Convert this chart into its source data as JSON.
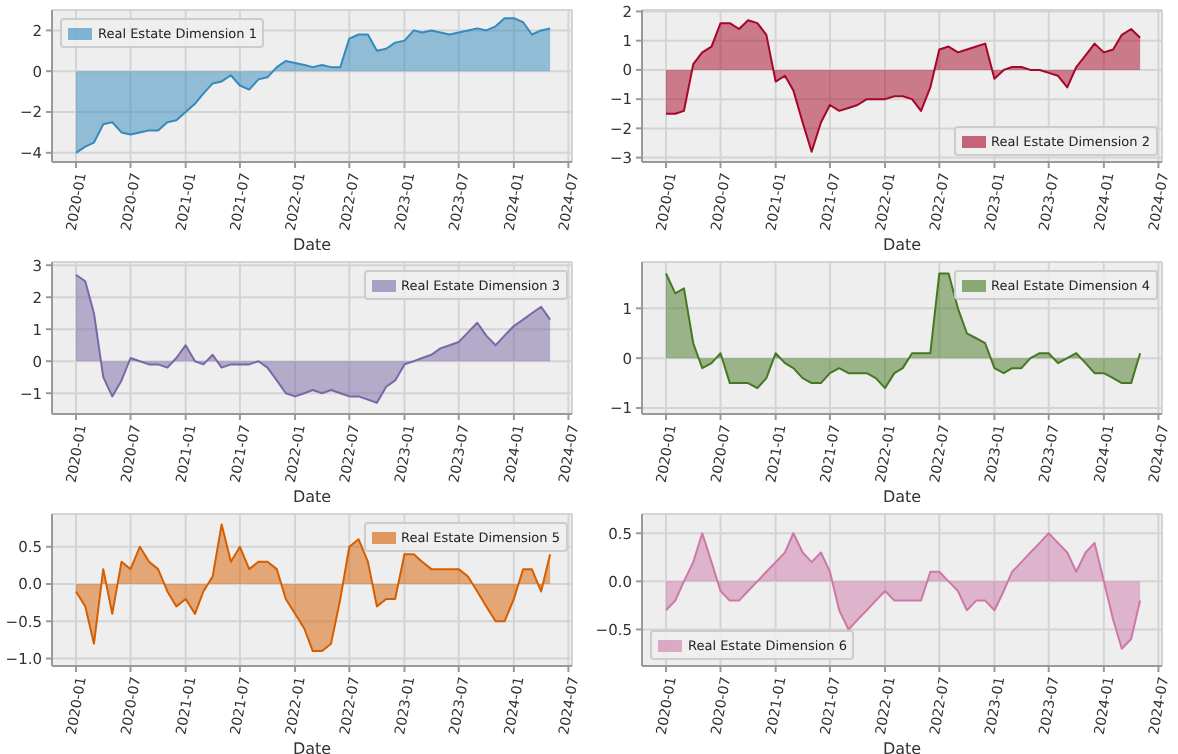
{
  "chart_data": [
    {
      "type": "area",
      "xlabel": "Date",
      "legend": "top left",
      "grid": true,
      "xlim": [
        "2019-10-13",
        "2024-07-13"
      ],
      "xticks": [
        "2020-01",
        "2020-07",
        "2021-01",
        "2021-07",
        "2022-01",
        "2022-07",
        "2023-01",
        "2023-07",
        "2024-01",
        "2024-07"
      ],
      "ylim": [
        -4.45,
        3.0
      ],
      "yticks": [
        {
          "value": -4,
          "label": "−4"
        },
        {
          "value": -2,
          "label": "−2"
        },
        0,
        2
      ],
      "x": [
        "2020-01",
        "2020-02",
        "2020-03",
        "2020-04",
        "2020-05",
        "2020-06",
        "2020-07",
        "2020-08",
        "2020-09",
        "2020-10",
        "2020-11",
        "2020-12",
        "2021-01",
        "2021-02",
        "2021-03",
        "2021-04",
        "2021-05",
        "2021-06",
        "2021-07",
        "2021-08",
        "2021-09",
        "2021-10",
        "2021-11",
        "2021-12",
        "2022-01",
        "2022-02",
        "2022-03",
        "2022-04",
        "2022-05",
        "2022-06",
        "2022-07",
        "2022-08",
        "2022-09",
        "2022-10",
        "2022-11",
        "2022-12",
        "2023-01",
        "2023-02",
        "2023-03",
        "2023-04",
        "2023-05",
        "2023-06",
        "2023-07",
        "2023-08",
        "2023-09",
        "2023-10",
        "2023-11",
        "2023-12",
        "2024-01",
        "2024-02",
        "2024-03",
        "2024-04",
        "2024-05"
      ],
      "series": [
        {
          "name": "Real Estate Dimension 1",
          "color": "#348abd",
          "values": [
            -4.0,
            -3.7,
            -3.5,
            -2.6,
            -2.5,
            -3.0,
            -3.1,
            -3.0,
            -2.9,
            -2.9,
            -2.5,
            -2.4,
            -2.0,
            -1.6,
            -1.1,
            -0.6,
            -0.5,
            -0.2,
            -0.7,
            -0.9,
            -0.4,
            -0.3,
            0.2,
            0.5,
            0.4,
            0.3,
            0.2,
            0.3,
            0.2,
            0.2,
            1.6,
            1.8,
            1.8,
            1.0,
            1.1,
            1.4,
            1.5,
            2.0,
            1.9,
            2.0,
            1.9,
            1.8,
            1.9,
            2.0,
            2.1,
            2.0,
            2.2,
            2.6,
            2.6,
            2.4,
            1.8,
            2.0,
            2.1
          ]
        }
      ]
    },
    {
      "type": "area",
      "xlabel": "Date",
      "legend": "bottom right",
      "grid": true,
      "xlim": [
        "2019-10-13",
        "2024-07-13"
      ],
      "xticks": [
        "2020-01",
        "2020-07",
        "2021-01",
        "2021-07",
        "2022-01",
        "2022-07",
        "2023-01",
        "2023-07",
        "2024-01",
        "2024-07"
      ],
      "ylim": [
        -3.15,
        2.05
      ],
      "yticks": [
        {
          "value": -3,
          "label": "−3"
        },
        {
          "value": -2,
          "label": "−2"
        },
        {
          "value": -1,
          "label": "−1"
        },
        0,
        1,
        2
      ],
      "x": [
        "2020-01",
        "2020-02",
        "2020-03",
        "2020-04",
        "2020-05",
        "2020-06",
        "2020-07",
        "2020-08",
        "2020-09",
        "2020-10",
        "2020-11",
        "2020-12",
        "2021-01",
        "2021-02",
        "2021-03",
        "2021-04",
        "2021-05",
        "2021-06",
        "2021-07",
        "2021-08",
        "2021-09",
        "2021-10",
        "2021-11",
        "2021-12",
        "2022-01",
        "2022-02",
        "2022-03",
        "2022-04",
        "2022-05",
        "2022-06",
        "2022-07",
        "2022-08",
        "2022-09",
        "2022-10",
        "2022-11",
        "2022-12",
        "2023-01",
        "2023-02",
        "2023-03",
        "2023-04",
        "2023-05",
        "2023-06",
        "2023-07",
        "2023-08",
        "2023-09",
        "2023-10",
        "2023-11",
        "2023-12",
        "2024-01",
        "2024-02",
        "2024-03",
        "2024-04",
        "2024-05"
      ],
      "series": [
        {
          "name": "Real Estate Dimension 2",
          "color": "#a60628",
          "values": [
            -1.5,
            -1.5,
            -1.4,
            0.2,
            0.6,
            0.8,
            1.6,
            1.6,
            1.4,
            1.7,
            1.6,
            1.2,
            -0.4,
            -0.2,
            -0.7,
            -1.8,
            -2.8,
            -1.8,
            -1.2,
            -1.4,
            -1.3,
            -1.2,
            -1.0,
            -1.0,
            -1.0,
            -0.9,
            -0.9,
            -1.0,
            -1.4,
            -0.6,
            0.7,
            0.8,
            0.6,
            0.7,
            0.8,
            0.9,
            -0.3,
            0.0,
            0.1,
            0.1,
            0.0,
            0.0,
            -0.1,
            -0.2,
            -0.6,
            0.1,
            0.5,
            0.9,
            0.6,
            0.7,
            1.2,
            1.4,
            1.1
          ]
        }
      ]
    },
    {
      "type": "area",
      "xlabel": "Date",
      "legend": "top right",
      "grid": true,
      "xlim": [
        "2019-10-13",
        "2024-07-13"
      ],
      "xticks": [
        "2020-01",
        "2020-07",
        "2021-01",
        "2021-07",
        "2022-01",
        "2022-07",
        "2023-01",
        "2023-07",
        "2024-01",
        "2024-07"
      ],
      "ylim": [
        -1.65,
        3.1
      ],
      "yticks": [
        {
          "value": -1,
          "label": "−1"
        },
        0,
        1,
        2,
        3
      ],
      "x": [
        "2020-01",
        "2020-02",
        "2020-03",
        "2020-04",
        "2020-05",
        "2020-06",
        "2020-07",
        "2020-08",
        "2020-09",
        "2020-10",
        "2020-11",
        "2020-12",
        "2021-01",
        "2021-02",
        "2021-03",
        "2021-04",
        "2021-05",
        "2021-06",
        "2021-07",
        "2021-08",
        "2021-09",
        "2021-10",
        "2021-11",
        "2021-12",
        "2022-01",
        "2022-02",
        "2022-03",
        "2022-04",
        "2022-05",
        "2022-06",
        "2022-07",
        "2022-08",
        "2022-09",
        "2022-10",
        "2022-11",
        "2022-12",
        "2023-01",
        "2023-02",
        "2023-03",
        "2023-04",
        "2023-05",
        "2023-06",
        "2023-07",
        "2023-08",
        "2023-09",
        "2023-10",
        "2023-11",
        "2023-12",
        "2024-01",
        "2024-02",
        "2024-03",
        "2024-04",
        "2024-05"
      ],
      "series": [
        {
          "name": "Real Estate Dimension 3",
          "color": "#7a68a6",
          "values": [
            2.7,
            2.5,
            1.5,
            -0.5,
            -1.1,
            -0.6,
            0.1,
            0.0,
            -0.1,
            -0.1,
            -0.2,
            0.1,
            0.5,
            0.0,
            -0.1,
            0.2,
            -0.2,
            -0.1,
            -0.1,
            -0.1,
            0.0,
            -0.2,
            -0.6,
            -1.0,
            -1.1,
            -1.0,
            -0.9,
            -1.0,
            -0.9,
            -1.0,
            -1.1,
            -1.1,
            -1.2,
            -1.3,
            -0.8,
            -0.6,
            -0.1,
            0.0,
            0.1,
            0.2,
            0.4,
            0.5,
            0.6,
            0.9,
            1.2,
            0.8,
            0.5,
            0.8,
            1.1,
            1.3,
            1.5,
            1.7,
            1.3
          ]
        }
      ]
    },
    {
      "type": "area",
      "xlabel": "Date",
      "legend": "top right",
      "grid": true,
      "xlim": [
        "2019-10-13",
        "2024-07-13"
      ],
      "xticks": [
        "2020-01",
        "2020-07",
        "2021-01",
        "2021-07",
        "2022-01",
        "2022-07",
        "2023-01",
        "2023-07",
        "2024-01",
        "2024-07"
      ],
      "ylim": [
        -1.12,
        1.93
      ],
      "yticks": [
        {
          "value": -1,
          "label": "−1"
        },
        0,
        1
      ],
      "x": [
        "2020-01",
        "2020-02",
        "2020-03",
        "2020-04",
        "2020-05",
        "2020-06",
        "2020-07",
        "2020-08",
        "2020-09",
        "2020-10",
        "2020-11",
        "2020-12",
        "2021-01",
        "2021-02",
        "2021-03",
        "2021-04",
        "2021-05",
        "2021-06",
        "2021-07",
        "2021-08",
        "2021-09",
        "2021-10",
        "2021-11",
        "2021-12",
        "2022-01",
        "2022-02",
        "2022-03",
        "2022-04",
        "2022-05",
        "2022-06",
        "2022-07",
        "2022-08",
        "2022-09",
        "2022-10",
        "2022-11",
        "2022-12",
        "2023-01",
        "2023-02",
        "2023-03",
        "2023-04",
        "2023-05",
        "2023-06",
        "2023-07",
        "2023-08",
        "2023-09",
        "2023-10",
        "2023-11",
        "2023-12",
        "2024-01",
        "2024-02",
        "2024-03",
        "2024-04",
        "2024-05"
      ],
      "series": [
        {
          "name": "Real Estate Dimension 4",
          "color": "#467821",
          "values": [
            1.7,
            1.3,
            1.4,
            0.3,
            -0.2,
            -0.1,
            0.1,
            -0.5,
            -0.5,
            -0.5,
            -0.6,
            -0.4,
            0.1,
            -0.1,
            -0.2,
            -0.4,
            -0.5,
            -0.5,
            -0.3,
            -0.2,
            -0.3,
            -0.3,
            -0.3,
            -0.4,
            -0.6,
            -0.3,
            -0.2,
            0.1,
            0.1,
            0.1,
            1.7,
            1.7,
            1.0,
            0.5,
            0.4,
            0.3,
            -0.2,
            -0.3,
            -0.2,
            -0.2,
            0.0,
            0.1,
            0.1,
            -0.1,
            0.0,
            0.1,
            -0.1,
            -0.3,
            -0.3,
            -0.4,
            -0.5,
            -0.5,
            0.1
          ]
        }
      ]
    },
    {
      "type": "area",
      "xlabel": "Date",
      "legend": "top right",
      "grid": true,
      "xlim": [
        "2019-10-13",
        "2024-07-13"
      ],
      "xticks": [
        "2020-01",
        "2020-07",
        "2021-01",
        "2021-07",
        "2022-01",
        "2022-07",
        "2023-01",
        "2023-07",
        "2024-01",
        "2024-07"
      ],
      "ylim": [
        -1.1,
        0.94
      ],
      "yticks": [
        {
          "value": -1,
          "label": "−1.0"
        },
        {
          "value": -0.5,
          "label": "−0.5"
        },
        {
          "value": 0,
          "label": "0.0"
        },
        0.5
      ],
      "x": [
        "2020-01",
        "2020-02",
        "2020-03",
        "2020-04",
        "2020-05",
        "2020-06",
        "2020-07",
        "2020-08",
        "2020-09",
        "2020-10",
        "2020-11",
        "2020-12",
        "2021-01",
        "2021-02",
        "2021-03",
        "2021-04",
        "2021-05",
        "2021-06",
        "2021-07",
        "2021-08",
        "2021-09",
        "2021-10",
        "2021-11",
        "2021-12",
        "2022-01",
        "2022-02",
        "2022-03",
        "2022-04",
        "2022-05",
        "2022-06",
        "2022-07",
        "2022-08",
        "2022-09",
        "2022-10",
        "2022-11",
        "2022-12",
        "2023-01",
        "2023-02",
        "2023-03",
        "2023-04",
        "2023-05",
        "2023-06",
        "2023-07",
        "2023-08",
        "2023-09",
        "2023-10",
        "2023-11",
        "2023-12",
        "2024-01",
        "2024-02",
        "2024-03",
        "2024-04",
        "2024-05"
      ],
      "series": [
        {
          "name": "Real Estate Dimension 5",
          "color": "#d55e00",
          "values": [
            -0.1,
            -0.3,
            -0.8,
            0.2,
            -0.4,
            0.3,
            0.2,
            0.5,
            0.3,
            0.2,
            -0.1,
            -0.3,
            -0.2,
            -0.4,
            -0.1,
            0.1,
            0.8,
            0.3,
            0.5,
            0.2,
            0.3,
            0.3,
            0.2,
            -0.2,
            -0.4,
            -0.6,
            -0.9,
            -0.9,
            -0.8,
            -0.2,
            0.5,
            0.6,
            0.3,
            -0.3,
            -0.2,
            -0.2,
            0.4,
            0.4,
            0.3,
            0.2,
            0.2,
            0.2,
            0.2,
            0.1,
            -0.1,
            -0.3,
            -0.5,
            -0.5,
            -0.2,
            0.2,
            0.2,
            -0.1,
            0.4
          ]
        }
      ]
    },
    {
      "type": "area",
      "xlabel": "Date",
      "legend": "bottom left",
      "grid": true,
      "xlim": [
        "2019-10-13",
        "2024-07-13"
      ],
      "xticks": [
        "2020-01",
        "2020-07",
        "2021-01",
        "2021-07",
        "2022-01",
        "2022-07",
        "2023-01",
        "2023-07",
        "2024-01",
        "2024-07"
      ],
      "ylim": [
        -0.88,
        0.7
      ],
      "yticks": [
        {
          "value": -0.5,
          "label": "−0.5"
        },
        {
          "value": 0,
          "label": "0.0"
        },
        0.5
      ],
      "x": [
        "2020-01",
        "2020-02",
        "2020-03",
        "2020-04",
        "2020-05",
        "2020-06",
        "2020-07",
        "2020-08",
        "2020-09",
        "2020-10",
        "2020-11",
        "2020-12",
        "2021-01",
        "2021-02",
        "2021-03",
        "2021-04",
        "2021-05",
        "2021-06",
        "2021-07",
        "2021-08",
        "2021-09",
        "2021-10",
        "2021-11",
        "2021-12",
        "2022-01",
        "2022-02",
        "2022-03",
        "2022-04",
        "2022-05",
        "2022-06",
        "2022-07",
        "2022-08",
        "2022-09",
        "2022-10",
        "2022-11",
        "2022-12",
        "2023-01",
        "2023-02",
        "2023-03",
        "2023-04",
        "2023-05",
        "2023-06",
        "2023-07",
        "2023-08",
        "2023-09",
        "2023-10",
        "2023-11",
        "2023-12",
        "2024-01",
        "2024-02",
        "2024-03",
        "2024-04",
        "2024-05"
      ],
      "series": [
        {
          "name": "Real Estate Dimension 6",
          "color": "#cc79a7",
          "values": [
            -0.3,
            -0.2,
            0.0,
            0.2,
            0.5,
            0.2,
            -0.1,
            -0.2,
            -0.2,
            -0.1,
            0.0,
            0.1,
            0.2,
            0.3,
            0.5,
            0.3,
            0.2,
            0.3,
            0.1,
            -0.3,
            -0.5,
            -0.4,
            -0.3,
            -0.2,
            -0.1,
            -0.2,
            -0.2,
            -0.2,
            -0.2,
            0.1,
            0.1,
            0.0,
            -0.1,
            -0.3,
            -0.2,
            -0.2,
            -0.3,
            -0.1,
            0.1,
            0.2,
            0.3,
            0.4,
            0.5,
            0.4,
            0.3,
            0.1,
            0.3,
            0.4,
            0.0,
            -0.4,
            -0.7,
            -0.6,
            -0.2
          ]
        }
      ]
    }
  ]
}
